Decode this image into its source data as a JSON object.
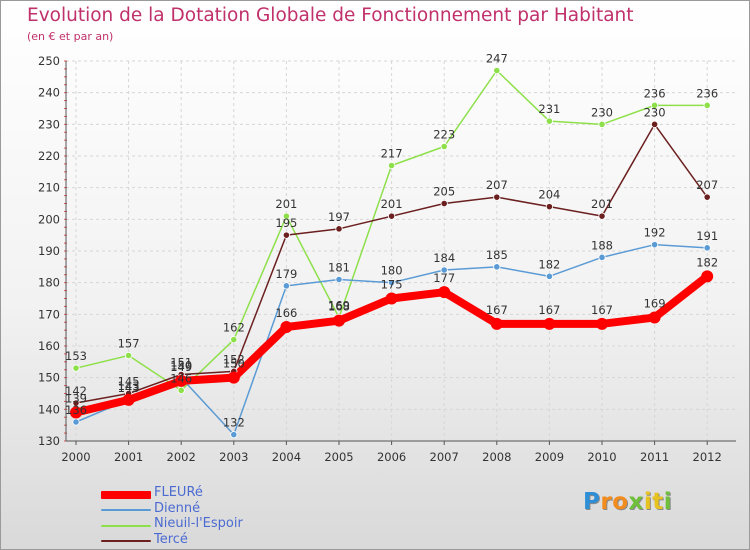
{
  "chart_data": {
    "type": "line",
    "title": "Evolution de la Dotation Globale de Fonctionnement par Habitant",
    "subtitle": "(en € et par an)",
    "x": [
      "2000",
      "2001",
      "2002",
      "2003",
      "2004",
      "2005",
      "2006",
      "2007",
      "2008",
      "2009",
      "2010",
      "2011",
      "2012"
    ],
    "ylim": [
      130,
      250
    ],
    "yticks": [
      130,
      140,
      150,
      160,
      170,
      180,
      190,
      200,
      210,
      220,
      230,
      240,
      250
    ],
    "grid": true,
    "legend_position": "bottom-left",
    "series": [
      {
        "name": "FLEURé",
        "color": "#ff0000",
        "values": [
          139,
          143,
          149,
          150,
          166,
          168,
          175,
          177,
          167,
          167,
          167,
          169,
          182
        ]
      },
      {
        "name": "Dienné",
        "color": "#5b9bd5",
        "values": [
          136,
          143,
          150,
          132,
          179,
          181,
          180,
          184,
          185,
          182,
          188,
          192,
          191
        ]
      },
      {
        "name": "Nieuil-l'Espoir",
        "color": "#8ee04a",
        "values": [
          153,
          157,
          146,
          162,
          201,
          169,
          217,
          223,
          247,
          231,
          230,
          236,
          236
        ]
      },
      {
        "name": "Tercé",
        "color": "#6b1f1f",
        "values": [
          142,
          145,
          151,
          152,
          195,
          197,
          201,
          205,
          207,
          204,
          201,
          230,
          207
        ]
      }
    ]
  },
  "logo": {
    "letters": [
      {
        "ch": "P",
        "color": "#2e8fd6"
      },
      {
        "ch": "r",
        "color": "#f28c1e"
      },
      {
        "ch": "o",
        "color": "#f28c1e"
      },
      {
        "ch": "x",
        "color": "#6fbf3a"
      },
      {
        "ch": "i",
        "color": "#e8c21e"
      },
      {
        "ch": "t",
        "color": "#e8c21e"
      },
      {
        "ch": "i",
        "color": "#6fbf3a"
      }
    ]
  }
}
